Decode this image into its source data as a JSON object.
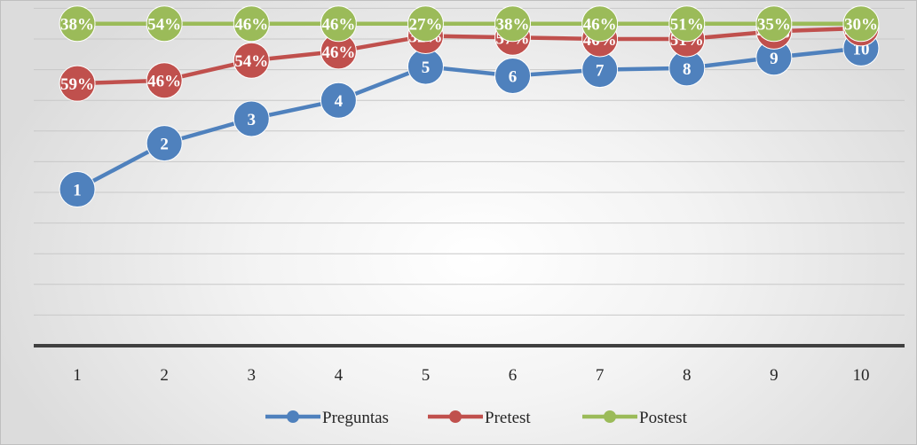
{
  "chart_data": {
    "type": "line",
    "title": "",
    "xlabel": "",
    "ylabel": "",
    "categories": [
      "1",
      "2",
      "3",
      "4",
      "5",
      "6",
      "7",
      "8",
      "9",
      "10"
    ],
    "ylim": [
      0,
      100
    ],
    "grid": true,
    "legend_position": "bottom",
    "series": [
      {
        "name": "Preguntas",
        "color": "#4f81bd",
        "values": [
          51,
          66,
          74,
          80,
          91,
          88,
          90,
          90.5,
          94,
          97
        ],
        "labels": [
          "1",
          "2",
          "3",
          "4",
          "5",
          "6",
          "7",
          "8",
          "9",
          "10"
        ]
      },
      {
        "name": "Pretest",
        "color": "#c0504d",
        "values": [
          85.5,
          86.5,
          93,
          96,
          101,
          100.5,
          100,
          100,
          102.5,
          103.5
        ],
        "labels": [
          "59%",
          "46%",
          "54%",
          "46%",
          "32%",
          "57%",
          "46%",
          "51%",
          "46%",
          "30%"
        ]
      },
      {
        "name": "Postest",
        "color": "#9bbb59",
        "values": [
          105,
          105,
          105,
          105,
          105,
          105,
          105,
          105,
          105,
          105
        ],
        "labels": [
          "38%",
          "54%",
          "46%",
          "46%",
          "27%",
          "38%",
          "46%",
          "51%",
          "35%",
          "30%"
        ]
      }
    ]
  }
}
